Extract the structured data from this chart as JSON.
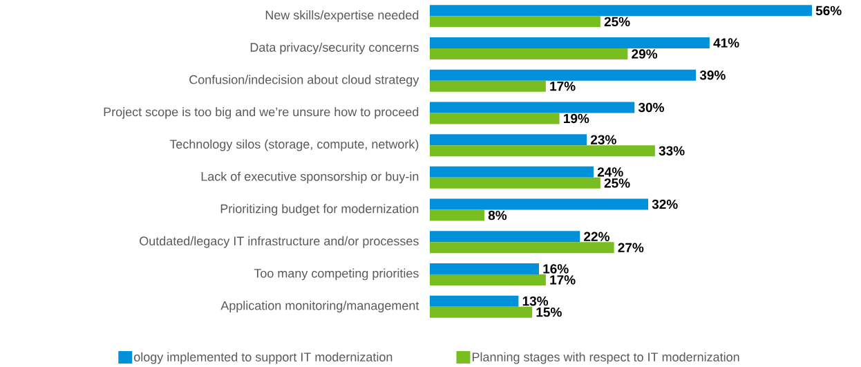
{
  "chart_data": {
    "type": "bar",
    "orientation": "horizontal",
    "legend": "bottom",
    "categories": [
      "New skills/expertise needed",
      "Data privacy/security concerns",
      "Confusion/indecision about cloud strategy",
      "Project scope is too big and we’re unsure how to proceed",
      "Technology silos (storage, compute, network)",
      "Lack of executive sponsorship or buy-in",
      "Prioritizing budget for modernization",
      "Outdated/legacy IT infrastructure and/or processes",
      "Too many competing priorities",
      "Application monitoring/management"
    ],
    "series": [
      {
        "name": "ology implemented to support IT modernization",
        "color": "#0091da",
        "values": [
          56,
          41,
          39,
          30,
          23,
          24,
          32,
          22,
          16,
          13
        ],
        "value_labels": [
          "56%",
          "41%",
          "39%",
          "30%",
          "23%",
          "24%",
          "32%",
          "22%",
          "16%",
          "13%"
        ]
      },
      {
        "name": "Planning stages with respect to IT modernization",
        "color": "#78be20",
        "values": [
          25,
          29,
          17,
          19,
          33,
          25,
          8,
          27,
          17,
          15
        ],
        "value_labels": [
          "25%",
          "29%",
          "17%",
          "19%",
          "33%",
          "25%",
          "8%",
          "27%",
          "17%",
          "15%"
        ]
      }
    ]
  }
}
